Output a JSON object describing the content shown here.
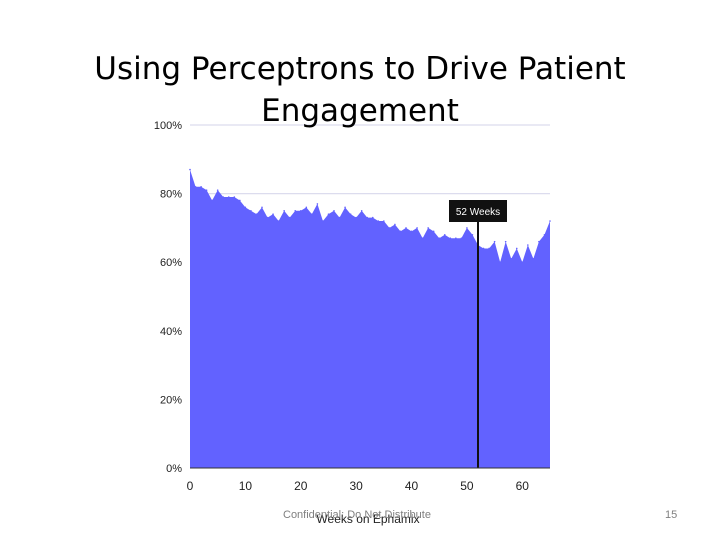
{
  "slide": {
    "title": "Using Perceptrons to Drive Patient Engagement",
    "footer": "Confidential: Do Not Distribute",
    "page_number": "15"
  },
  "colors": {
    "area_fill": "#6262ff",
    "gridline": "#dcdcee",
    "marker_line": "#111111",
    "marker_label_bg": "#111111",
    "axis_text": "#222222"
  },
  "chart_data": {
    "type": "area",
    "title": "",
    "xlabel": "Weeks on Ephamix",
    "ylabel": "",
    "xlim": [
      0,
      65
    ],
    "ylim": [
      0,
      100
    ],
    "x_ticks": [
      0,
      10,
      20,
      30,
      40,
      50,
      60
    ],
    "y_ticks": [
      0,
      20,
      40,
      60,
      80,
      100
    ],
    "y_tick_labels": [
      "0%",
      "20%",
      "40%",
      "60%",
      "80%",
      "100%"
    ],
    "grid": true,
    "x": [
      0,
      1,
      2,
      3,
      4,
      5,
      6,
      7,
      8,
      9,
      10,
      11,
      12,
      13,
      14,
      15,
      16,
      17,
      18,
      19,
      20,
      21,
      22,
      23,
      24,
      25,
      26,
      27,
      28,
      29,
      30,
      31,
      32,
      33,
      34,
      35,
      36,
      37,
      38,
      39,
      40,
      41,
      42,
      43,
      44,
      45,
      46,
      47,
      48,
      49,
      50,
      51,
      52,
      53,
      54,
      55,
      56,
      57,
      58,
      59,
      60,
      61,
      62,
      63,
      64,
      65
    ],
    "values": [
      87,
      82,
      82,
      81,
      78,
      81,
      79,
      79,
      79,
      78,
      76,
      75,
      74,
      76,
      73,
      74,
      72,
      75,
      73,
      75,
      75,
      76,
      74,
      77,
      72,
      74,
      75,
      73,
      76,
      74,
      73,
      75,
      73,
      73,
      72,
      72,
      70,
      71,
      69,
      70,
      69,
      70,
      67,
      70,
      69,
      67,
      68,
      67,
      67,
      67,
      70,
      68,
      65,
      64,
      64,
      66,
      60,
      66,
      61,
      64,
      60,
      65,
      61,
      66,
      68,
      72
    ],
    "annotations": [
      {
        "x": 52,
        "label": "52 Weeks"
      }
    ]
  }
}
